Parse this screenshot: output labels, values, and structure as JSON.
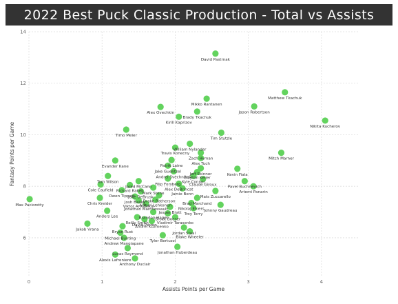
{
  "title": "2022 Best Puck Classic Production - Total vs Assists",
  "colors": {
    "title_bg": "#333333",
    "title_fg": "#ffffff",
    "point": "#63d35e",
    "grid": "#dedede",
    "text": "#333333"
  },
  "chart_data": {
    "type": "scatter",
    "title": "2022 Best Puck Classic Production - Total vs Assists",
    "xlabel": "Assists Points per Game",
    "ylabel": "Fantasy Points per Game",
    "xlim": [
      0,
      4.5
    ],
    "ylim": [
      4.5,
      14
    ],
    "xticks": [
      0,
      1,
      2,
      3,
      4
    ],
    "yticks": [
      6,
      8,
      10,
      12,
      14
    ],
    "grid": true,
    "points": [
      {
        "label": "David Pastrnak",
        "x": 2.55,
        "y": 13.15
      },
      {
        "label": "Matthew Tkachuk",
        "x": 3.5,
        "y": 11.65
      },
      {
        "label": "Mikko Rantanen",
        "x": 2.43,
        "y": 11.4
      },
      {
        "label": "Jason Robertson",
        "x": 3.08,
        "y": 11.1
      },
      {
        "label": "Alex Ovechkin",
        "x": 1.8,
        "y": 11.08
      },
      {
        "label": "Brady Tkachuk",
        "x": 2.3,
        "y": 10.9
      },
      {
        "label": "Kirill Kaprizov",
        "x": 2.05,
        "y": 10.7
      },
      {
        "label": "Nikita Kucherov",
        "x": 4.05,
        "y": 10.55
      },
      {
        "label": "Timo Meier",
        "x": 1.33,
        "y": 10.2
      },
      {
        "label": "Tim Stutzle",
        "x": 2.63,
        "y": 10.08
      },
      {
        "label": "William Nylander",
        "x": 2.2,
        "y": 9.65
      },
      {
        "label": "Travis Konecny",
        "x": 2.0,
        "y": 9.5
      },
      {
        "label": "Zach Hyman",
        "x": 2.35,
        "y": 9.3
      },
      {
        "label": "Mitch Marner",
        "x": 3.45,
        "y": 9.3
      },
      {
        "label": "Alex Tuch",
        "x": 2.35,
        "y": 9.1
      },
      {
        "label": "Patrik Laine",
        "x": 1.95,
        "y": 9.02
      },
      {
        "label": "Evander Kane",
        "x": 1.18,
        "y": 9.0
      },
      {
        "label": "Jake Guentzel",
        "x": 1.9,
        "y": 8.8
      },
      {
        "label": "Jeff Skinner",
        "x": 2.35,
        "y": 8.7
      },
      {
        "label": "Kevin Fiala",
        "x": 2.85,
        "y": 8.68
      },
      {
        "label": "Andrei Svechnikov",
        "x": 1.98,
        "y": 8.58
      },
      {
        "label": "Clayton Keller",
        "x": 2.3,
        "y": 8.55
      },
      {
        "label": "Kyle Connor",
        "x": 2.25,
        "y": 8.4
      },
      {
        "label": "Tom Wilson",
        "x": 1.08,
        "y": 8.4
      },
      {
        "label": "Filip Forsberg",
        "x": 1.9,
        "y": 8.3
      },
      {
        "label": "Claude Giroux",
        "x": 2.38,
        "y": 8.28
      },
      {
        "label": "Jared McCann",
        "x": 1.5,
        "y": 8.2
      },
      {
        "label": "Pavel Buchnevich",
        "x": 2.95,
        "y": 8.2
      },
      {
        "label": "Alex DeBrincat",
        "x": 2.05,
        "y": 8.1
      },
      {
        "label": "Cole Caufield",
        "x": 0.98,
        "y": 8.07
      },
      {
        "label": "Rickard Rakell",
        "x": 1.38,
        "y": 8.05
      },
      {
        "label": "Artemi Panarin",
        "x": 3.07,
        "y": 8.0
      },
      {
        "label": "Mark Stone",
        "x": 1.7,
        "y": 7.95
      },
      {
        "label": "Jamie Benn",
        "x": 2.1,
        "y": 7.92
      },
      {
        "label": "Owen Tippett",
        "x": 1.27,
        "y": 7.85
      },
      {
        "label": "Mats Zuccarello",
        "x": 2.55,
        "y": 7.82
      },
      {
        "label": "Jake DeBrusk",
        "x": 1.53,
        "y": 7.8
      },
      {
        "label": "Drake Batherson",
        "x": 1.78,
        "y": 7.65
      },
      {
        "label": "Josh Bailey",
        "x": 1.45,
        "y": 7.6
      },
      {
        "label": "Chris Kreider",
        "x": 0.97,
        "y": 7.55
      },
      {
        "label": "Brad Marchand",
        "x": 2.3,
        "y": 7.55
      },
      {
        "label": "Max Pacioretty",
        "x": 0.01,
        "y": 7.5
      },
      {
        "label": "Viktor Arvidsson",
        "x": 1.5,
        "y": 7.45
      },
      {
        "label": "Artturi Lehkonen",
        "x": 1.73,
        "y": 7.48
      },
      {
        "label": "Nikolaj Ehlers",
        "x": 2.22,
        "y": 7.35
      },
      {
        "label": "Jonathan Marchessault",
        "x": 1.6,
        "y": 7.33
      },
      {
        "label": "Johnny Gaudreau",
        "x": 2.62,
        "y": 7.28
      },
      {
        "label": "Jesper Bratt",
        "x": 1.93,
        "y": 7.2
      },
      {
        "label": "Troy Terry",
        "x": 2.25,
        "y": 7.15
      },
      {
        "label": "Anders Lee",
        "x": 1.07,
        "y": 7.05
      },
      {
        "label": "Brandon Hagel",
        "x": 1.7,
        "y": 7.0
      },
      {
        "label": "Brock Boeser",
        "x": 1.9,
        "y": 6.95
      },
      {
        "label": "Reilly Smith",
        "x": 1.48,
        "y": 6.8
      },
      {
        "label": "Vladimir Tarasenko",
        "x": 2.0,
        "y": 6.8
      },
      {
        "label": "David Perron",
        "x": 1.58,
        "y": 6.72
      },
      {
        "label": "Andrei Kuzmenko",
        "x": 1.68,
        "y": 6.65
      },
      {
        "label": "Jakob Vrana",
        "x": 0.8,
        "y": 6.55
      },
      {
        "label": "Bryan Rust",
        "x": 1.28,
        "y": 6.45
      },
      {
        "label": "Jordan Staal",
        "x": 2.12,
        "y": 6.4
      },
      {
        "label": "Blake Wheeler",
        "x": 2.2,
        "y": 6.25
      },
      {
        "label": "Michael Bunting",
        "x": 1.25,
        "y": 6.2
      },
      {
        "label": "Tyler Bertuzzi",
        "x": 1.83,
        "y": 6.1
      },
      {
        "label": "Andrew Mangiapane",
        "x": 1.3,
        "y": 6.0
      },
      {
        "label": "Jonathan Huberdeau",
        "x": 2.03,
        "y": 5.65
      },
      {
        "label": "Lucas Raymond",
        "x": 1.35,
        "y": 5.6
      },
      {
        "label": "Alexis Lafreniere",
        "x": 1.18,
        "y": 5.35
      },
      {
        "label": "Anthony Duclair",
        "x": 1.45,
        "y": 5.2
      }
    ]
  }
}
